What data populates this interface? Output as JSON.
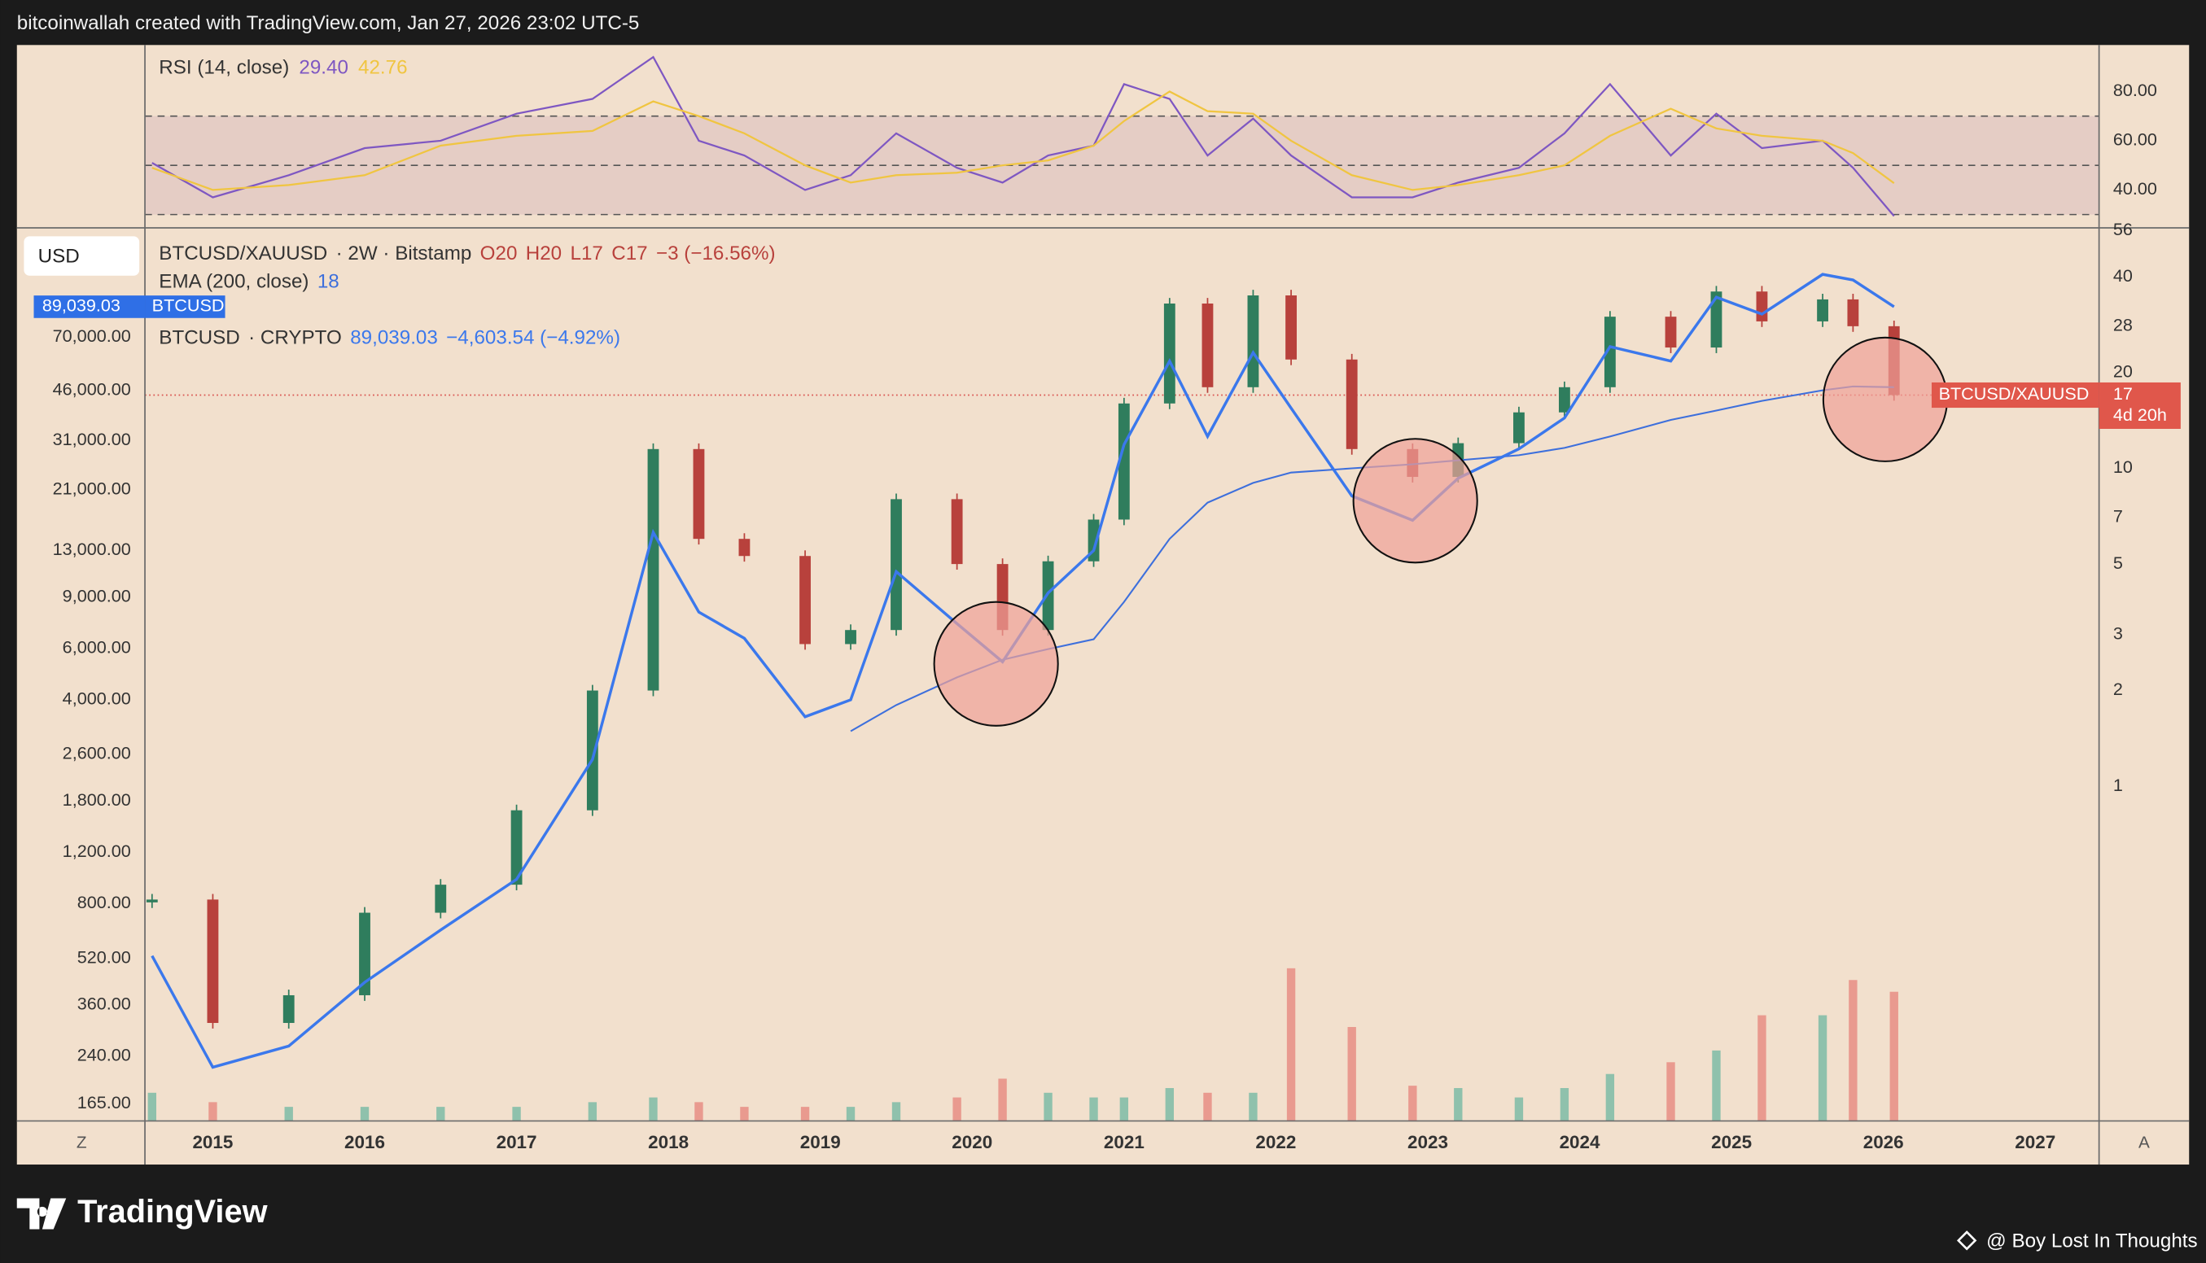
{
  "header": {
    "credit": "bitcoinwallah created with TradingView.com, Jan 27, 2026 23:02 UTC-5"
  },
  "controls": {
    "currency": "USD",
    "left_button": "Z",
    "right_button": "A"
  },
  "footer": {
    "brand": "TradingView",
    "author": "@ Boy Lost In Thoughts"
  },
  "chart_data": [
    {
      "type": "line",
      "legend_values": [
        "29.40",
        "42.76"
      ],
      "x": [
        2014.6,
        2015.0,
        2015.5,
        2016.0,
        2016.5,
        2017.0,
        2017.5,
        2017.9,
        2018.2,
        2018.5,
        2018.9,
        2019.2,
        2019.5,
        2019.9,
        2020.2,
        2020.5,
        2020.8,
        2021.0,
        2021.3,
        2021.55,
        2021.85,
        2022.1,
        2022.5,
        2022.9,
        2023.2,
        2023.6,
        2023.9,
        2024.2,
        2024.6,
        2024.9,
        2025.2,
        2025.6,
        2025.8,
        2026.07
      ],
      "xlim": [
        2014.553,
        2027.42
      ],
      "ylim": [
        24.6,
        98.9
      ],
      "yticks": [
        {
          "value": 40,
          "label": "40.00"
        },
        {
          "value": 60,
          "label": "60.00"
        },
        {
          "value": 80,
          "label": "80.00"
        }
      ],
      "levels": [
        30,
        50,
        70
      ],
      "band": [
        30,
        70
      ],
      "band_color": "#e5cdc5",
      "series": [
        {
          "name": "RSI (14, close)",
          "color": "#7e57c2",
          "values": [
            51,
            37,
            46,
            57,
            60,
            71,
            77,
            94,
            60,
            54,
            40,
            46,
            63,
            49,
            43,
            54,
            58,
            83,
            77,
            54,
            69,
            54,
            37,
            37,
            43,
            49,
            63,
            83,
            54,
            71,
            57,
            60,
            49,
            29.4
          ]
        },
        {
          "color": "#f0c541",
          "values": [
            49,
            40,
            42,
            46,
            58,
            62,
            64,
            76,
            70,
            63,
            50,
            43,
            46,
            47,
            50,
            52,
            58,
            68,
            80,
            72,
            71,
            60,
            46,
            40,
            42,
            46,
            50,
            62,
            73,
            65,
            62,
            60,
            55,
            42.76
          ]
        }
      ]
    },
    {
      "type": "line",
      "x": [
        2014.6,
        2015.0,
        2015.5,
        2016.0,
        2016.5,
        2017.0,
        2017.5,
        2017.9,
        2018.2,
        2018.5,
        2018.9,
        2019.2,
        2019.5,
        2019.9,
        2020.2,
        2020.5,
        2020.8,
        2021.0,
        2021.3,
        2021.55,
        2021.85,
        2022.1,
        2022.5,
        2022.9,
        2023.2,
        2023.6,
        2023.9,
        2024.2,
        2024.6,
        2024.9,
        2025.2,
        2025.6,
        2025.8,
        2026.07
      ],
      "xlim": [
        2014.553,
        2027.42
      ],
      "xticks": [
        2015,
        2016,
        2017,
        2018,
        2019,
        2020,
        2021,
        2022,
        2023,
        2024,
        2025,
        2026,
        2027
      ],
      "ylim": [
        144,
        166000
      ],
      "ylog": true,
      "yticks": [
        {
          "value": 165,
          "label": "165.00"
        },
        {
          "value": 240,
          "label": "240.00"
        },
        {
          "value": 360,
          "label": "360.00"
        },
        {
          "value": 520,
          "label": "520.00"
        },
        {
          "value": 800,
          "label": "800.00"
        },
        {
          "value": 1200,
          "label": "1,200.00"
        },
        {
          "value": 1800,
          "label": "1,800.00"
        },
        {
          "value": 2600,
          "label": "2,600.00"
        },
        {
          "value": 4000,
          "label": "4,000.00"
        },
        {
          "value": 6000,
          "label": "6,000.00"
        },
        {
          "value": 9000,
          "label": "9,000.00"
        },
        {
          "value": 13000,
          "label": "13,000.00"
        },
        {
          "value": 21000,
          "label": "21,000.00"
        },
        {
          "value": 31000,
          "label": "31,000.00"
        },
        {
          "value": 46000,
          "label": "46,000.00"
        },
        {
          "value": 70000,
          "label": "70,000.00"
        }
      ],
      "y2lim": [
        0.0885,
        57.1
      ],
      "y2log": true,
      "y2ticks": [
        1,
        2,
        3,
        5,
        7,
        10,
        20,
        28,
        40,
        56
      ],
      "series": [
        {
          "name": "BTCUSD/XAUUSD",
          "axis": "y2",
          "style": "candle",
          "up_color": "#2f7d5d",
          "down_color": "#b8413c",
          "legend": [
            "· 2W · Bitstamp",
            "O20",
            "H20",
            "L17",
            "C17",
            "−3 (−16.56%)"
          ],
          "countdown": "4d 20h",
          "values": [
            0.44,
            0.18,
            0.22,
            0.4,
            0.49,
            0.84,
            2.0,
            11.5,
            6.0,
            5.3,
            2.8,
            3.1,
            8.0,
            5.0,
            3.1,
            5.1,
            6.9,
            16,
            33,
            18,
            35,
            22,
            11.5,
            9.4,
            12,
            15,
            18,
            30,
            24,
            36,
            29,
            34,
            28,
            17
          ]
        },
        {
          "name": "EMA (200, close)",
          "axis": "y2",
          "color": "#3d6fdc",
          "legend": [
            "18"
          ],
          "values": [
            null,
            null,
            null,
            null,
            null,
            null,
            null,
            null,
            null,
            null,
            null,
            1.49,
            1.8,
            2.2,
            2.5,
            2.7,
            2.9,
            3.8,
            6.0,
            7.8,
            9.0,
            9.7,
            10.0,
            10.3,
            10.6,
            11.0,
            11.6,
            12.6,
            14.2,
            15.2,
            16.3,
            17.6,
            18.1,
            18
          ]
        },
        {
          "name": "BTCUSD",
          "color": "#3b78ec",
          "legend": [
            "· CRYPTO",
            "89,039.03",
            "−4,603.54 (−4.92%)"
          ],
          "values": [
            530,
            220,
            260,
            430,
            650,
            970,
            2500,
            15000,
            8000,
            6500,
            3500,
            4000,
            11000,
            7300,
            5400,
            9300,
            13000,
            30000,
            58000,
            32000,
            62000,
            40000,
            20000,
            16500,
            23000,
            29000,
            37000,
            65000,
            58000,
            96000,
            84000,
            115000,
            110000,
            89039.03
          ]
        }
      ],
      "volume": {
        "vlim": [
          0,
          100
        ],
        "up_color": "#8fc1ac",
        "down_color": "#e99a8f",
        "values": [
          12,
          8,
          6,
          6,
          6,
          6,
          8,
          10,
          8,
          6,
          6,
          6,
          8,
          10,
          18,
          12,
          10,
          10,
          14,
          12,
          12,
          65,
          40,
          15,
          14,
          10,
          14,
          20,
          25,
          30,
          45,
          45,
          60,
          55
        ]
      },
      "price_line_color": "#d9534f",
      "price_tag_color": "#e0574b",
      "btc_tag_color": "#2f6fe6"
    }
  ]
}
